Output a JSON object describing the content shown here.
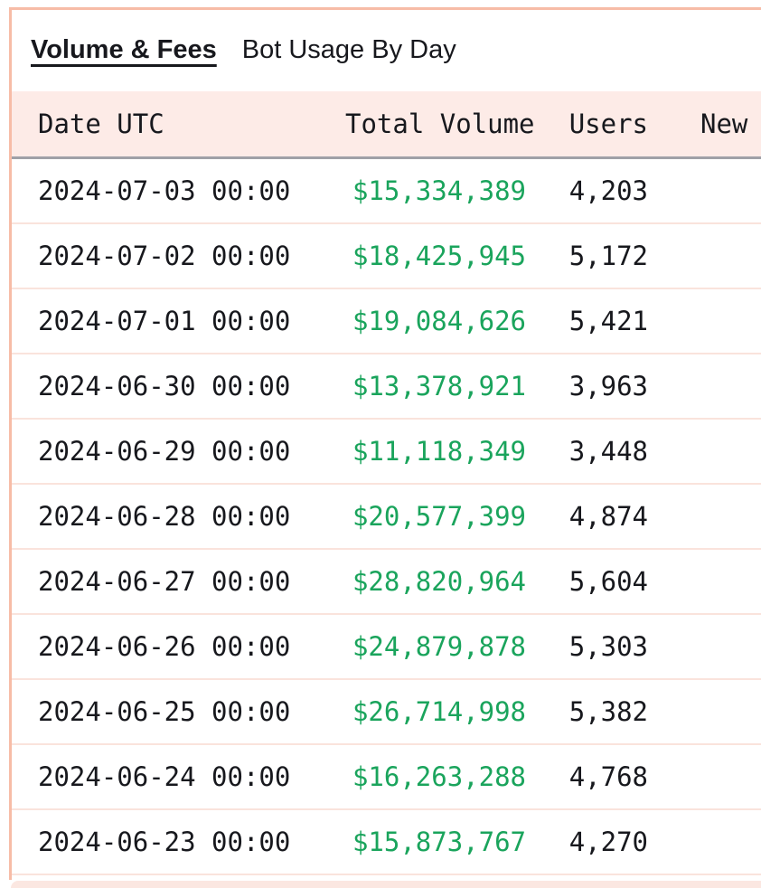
{
  "tabs": [
    {
      "label": "Volume & Fees",
      "active": true
    },
    {
      "label": "Bot Usage By Day",
      "active": false
    }
  ],
  "table": {
    "columns": {
      "date": "Date UTC",
      "volume": "Total Volume",
      "users": "Users",
      "new_users": "New"
    },
    "rows": [
      {
        "date": "2024-07-03 00:00",
        "volume": "$15,334,389",
        "users": "4,203"
      },
      {
        "date": "2024-07-02 00:00",
        "volume": "$18,425,945",
        "users": "5,172"
      },
      {
        "date": "2024-07-01 00:00",
        "volume": "$19,084,626",
        "users": "5,421"
      },
      {
        "date": "2024-06-30 00:00",
        "volume": "$13,378,921",
        "users": "3,963"
      },
      {
        "date": "2024-06-29 00:00",
        "volume": "$11,118,349",
        "users": "3,448"
      },
      {
        "date": "2024-06-28 00:00",
        "volume": "$20,577,399",
        "users": "4,874"
      },
      {
        "date": "2024-06-27 00:00",
        "volume": "$28,820,964",
        "users": "5,604"
      },
      {
        "date": "2024-06-26 00:00",
        "volume": "$24,879,878",
        "users": "5,303"
      },
      {
        "date": "2024-06-25 00:00",
        "volume": "$26,714,998",
        "users": "5,382"
      },
      {
        "date": "2024-06-24 00:00",
        "volume": "$16,263,288",
        "users": "4,768"
      },
      {
        "date": "2024-06-23 00:00",
        "volume": "$15,873,767",
        "users": "4,270"
      }
    ]
  },
  "colors": {
    "accent_border": "#f7bca7",
    "header_bg": "#fdebe7",
    "row_separator": "#fae3dc",
    "header_divider": "#9fa0a7",
    "text": "#17181d",
    "volume_green": "#1aa45c"
  }
}
